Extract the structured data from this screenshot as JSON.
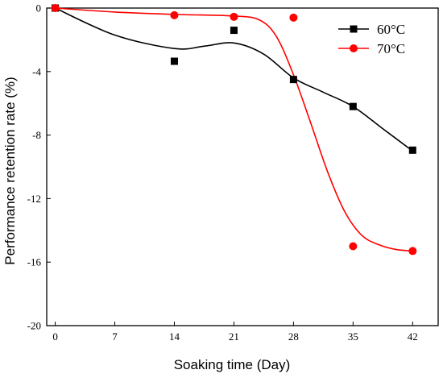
{
  "chart_data": {
    "type": "scatter",
    "title": "",
    "xlabel": "Soaking time (Day)",
    "ylabel": "Performance retention rate (%)",
    "xlim": [
      -1,
      45
    ],
    "ylim": [
      -20,
      0
    ],
    "xticks": [
      0,
      7,
      14,
      21,
      28,
      35,
      42
    ],
    "yticks": [
      0,
      -4,
      -8,
      -12,
      -16,
      -20
    ],
    "xtick_labels": [
      "0",
      "7",
      "14",
      "21",
      "28",
      "35",
      "42"
    ],
    "ytick_labels": [
      "0",
      "-4",
      "-8",
      "-12",
      "-16",
      "-20"
    ],
    "grid": false,
    "legend_position": "top-right",
    "series": [
      {
        "name": "60°C",
        "marker": "square",
        "color": "#000000",
        "x": [
          0,
          14,
          21,
          28,
          35,
          42
        ],
        "y": [
          0,
          -3.35,
          -1.4,
          -4.5,
          -6.2,
          -8.95
        ],
        "fit": [
          [
            0,
            0
          ],
          [
            7,
            -1.7
          ],
          [
            14,
            -2.55
          ],
          [
            17.5,
            -2.4
          ],
          [
            21,
            -2.2
          ],
          [
            24.5,
            -2.9
          ],
          [
            28,
            -4.4
          ],
          [
            31.5,
            -5.3
          ],
          [
            35,
            -6.2
          ],
          [
            38.5,
            -7.6
          ],
          [
            42,
            -9.0
          ]
        ]
      },
      {
        "name": "70°C",
        "marker": "circle",
        "color": "#ff0000",
        "x": [
          0,
          14,
          21,
          28,
          35,
          42
        ],
        "y": [
          0,
          -0.45,
          -0.55,
          -0.6,
          -15.0,
          -15.3
        ],
        "fit": [
          [
            0,
            0
          ],
          [
            7,
            -0.25
          ],
          [
            14,
            -0.4
          ],
          [
            21,
            -0.5
          ],
          [
            24,
            -0.75
          ],
          [
            26,
            -1.8
          ],
          [
            28,
            -4.2
          ],
          [
            30,
            -7.2
          ],
          [
            32,
            -10.3
          ],
          [
            34,
            -12.8
          ],
          [
            36,
            -14.3
          ],
          [
            38,
            -14.9
          ],
          [
            40,
            -15.2
          ],
          [
            42,
            -15.3
          ]
        ]
      }
    ]
  }
}
